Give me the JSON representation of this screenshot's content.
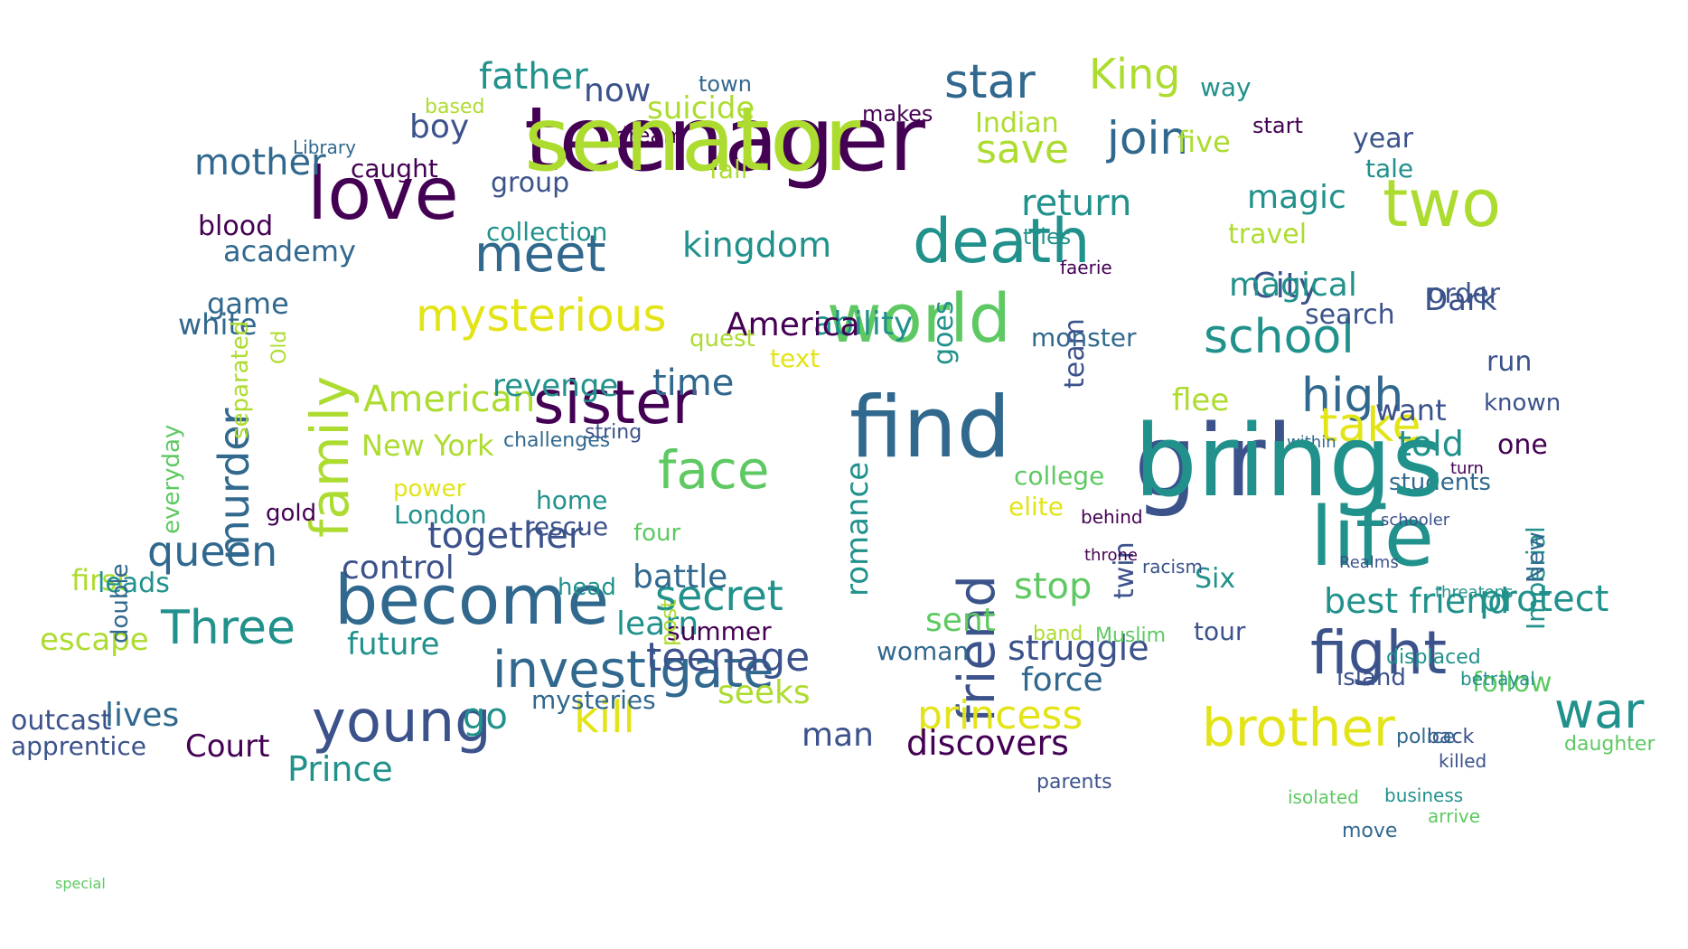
{
  "palette": {
    "dark_purple": "#440154",
    "indigo": "#3b528b",
    "blue": "#31688e",
    "teal": "#21918c",
    "sea": "#27ad81",
    "green": "#5ec962",
    "lime": "#addc30",
    "yellow": "#e3e418",
    "background": "#ffffff"
  },
  "words": [
    {
      "text": "teenager",
      "color": "dark_purple"
    },
    {
      "text": "girl",
      "color": "indigo"
    },
    {
      "text": "love",
      "color": "dark_purple"
    },
    {
      "text": "life",
      "color": "teal"
    },
    {
      "text": "become",
      "color": "blue"
    },
    {
      "text": "find",
      "color": "blue"
    },
    {
      "text": "two",
      "color": "lime"
    },
    {
      "text": "death",
      "color": "teal"
    },
    {
      "text": "world",
      "color": "green"
    },
    {
      "text": "sister",
      "color": "dark_purple"
    },
    {
      "text": "fight",
      "color": "indigo"
    },
    {
      "text": "young",
      "color": "indigo"
    },
    {
      "text": "friend",
      "color": "indigo"
    },
    {
      "text": "investigate",
      "color": "blue"
    },
    {
      "text": "brother",
      "color": "yellow"
    },
    {
      "text": "family",
      "color": "lime"
    },
    {
      "text": "mysterious",
      "color": "yellow"
    },
    {
      "text": "war",
      "color": "teal"
    },
    {
      "text": "face",
      "color": "green"
    },
    {
      "text": "meet",
      "color": "blue"
    },
    {
      "text": "star",
      "color": "blue"
    },
    {
      "text": "King",
      "color": "lime"
    },
    {
      "text": "kill",
      "color": "yellow"
    },
    {
      "text": "Three",
      "color": "teal"
    },
    {
      "text": "queen",
      "color": "blue"
    },
    {
      "text": "school",
      "color": "teal"
    },
    {
      "text": "high",
      "color": "blue"
    },
    {
      "text": "take",
      "color": "yellow"
    },
    {
      "text": "secret",
      "color": "teal"
    },
    {
      "text": "murder",
      "color": "blue"
    },
    {
      "text": "princess",
      "color": "yellow"
    },
    {
      "text": "teenage",
      "color": "indigo"
    },
    {
      "text": "join",
      "color": "blue"
    },
    {
      "text": "save",
      "color": "lime"
    },
    {
      "text": "American",
      "color": "lime"
    },
    {
      "text": "together",
      "color": "indigo"
    },
    {
      "text": "discovers",
      "color": "dark_purple"
    },
    {
      "text": "struggle",
      "color": "indigo"
    },
    {
      "text": "time",
      "color": "blue"
    },
    {
      "text": "return",
      "color": "teal"
    },
    {
      "text": "kingdom",
      "color": "teal"
    },
    {
      "text": "best friend",
      "color": "teal"
    },
    {
      "text": "father",
      "color": "teal"
    },
    {
      "text": "mother",
      "color": "blue"
    },
    {
      "text": "romance",
      "color": "teal"
    },
    {
      "text": "Court",
      "color": "dark_purple"
    },
    {
      "text": "lives",
      "color": "blue"
    },
    {
      "text": "Prince",
      "color": "teal"
    },
    {
      "text": "learn",
      "color": "teal"
    },
    {
      "text": "ability",
      "color": "teal"
    },
    {
      "text": "force",
      "color": "blue"
    },
    {
      "text": "protect",
      "color": "teal"
    },
    {
      "text": "stop",
      "color": "green"
    },
    {
      "text": "go",
      "color": "teal"
    },
    {
      "text": "man",
      "color": "indigo"
    },
    {
      "text": "control",
      "color": "indigo"
    },
    {
      "text": "battle",
      "color": "blue"
    },
    {
      "text": "America",
      "color": "dark_purple"
    },
    {
      "text": "City",
      "color": "indigo"
    },
    {
      "text": "magical",
      "color": "teal"
    },
    {
      "text": "magic",
      "color": "teal"
    },
    {
      "text": "New York",
      "color": "lime"
    },
    {
      "text": "revenge",
      "color": "teal"
    },
    {
      "text": "seeks",
      "color": "lime"
    },
    {
      "text": "sent",
      "color": "green"
    },
    {
      "text": "future",
      "color": "teal"
    },
    {
      "text": "escape",
      "color": "lime"
    },
    {
      "text": "outcast",
      "color": "indigo"
    },
    {
      "text": "apprentice",
      "color": "indigo"
    },
    {
      "text": "game",
      "color": "blue"
    },
    {
      "text": "academy",
      "color": "blue"
    },
    {
      "text": "white",
      "color": "blue"
    },
    {
      "text": "boy",
      "color": "indigo"
    },
    {
      "text": "blood",
      "color": "dark_purple"
    },
    {
      "text": "caught",
      "color": "dark_purple"
    },
    {
      "text": "group",
      "color": "indigo"
    },
    {
      "text": "now",
      "color": "indigo"
    },
    {
      "text": "suicide",
      "color": "lime"
    },
    {
      "text": "fall",
      "color": "lime"
    },
    {
      "text": "collection",
      "color": "teal"
    },
    {
      "text": "Indian",
      "color": "lime"
    },
    {
      "text": "five",
      "color": "lime"
    },
    {
      "text": "year",
      "color": "indigo"
    },
    {
      "text": "order",
      "color": "indigo"
    },
    {
      "text": "Dark",
      "color": "indigo"
    },
    {
      "text": "search",
      "color": "indigo"
    },
    {
      "text": "run",
      "color": "indigo"
    },
    {
      "text": "told",
      "color": "teal"
    },
    {
      "text": "want",
      "color": "indigo"
    },
    {
      "text": "one",
      "color": "dark_purple"
    },
    {
      "text": "known",
      "color": "indigo"
    },
    {
      "text": "flee",
      "color": "lime"
    },
    {
      "text": "team",
      "color": "indigo"
    },
    {
      "text": "twin",
      "color": "indigo"
    },
    {
      "text": "tour",
      "color": "indigo"
    },
    {
      "text": "Six",
      "color": "teal"
    },
    {
      "text": "college",
      "color": "green"
    },
    {
      "text": "elite",
      "color": "yellow"
    },
    {
      "text": "monster",
      "color": "blue"
    },
    {
      "text": "travel",
      "color": "lime"
    },
    {
      "text": "way",
      "color": "teal"
    },
    {
      "text": "tale",
      "color": "teal"
    },
    {
      "text": "start",
      "color": "dark_purple"
    },
    {
      "text": "students",
      "color": "blue"
    },
    {
      "text": "follow",
      "color": "green"
    },
    {
      "text": "Imperial",
      "color": "teal"
    },
    {
      "text": "New",
      "color": "blue"
    },
    {
      "text": "island",
      "color": "indigo"
    },
    {
      "text": "woman",
      "color": "blue"
    },
    {
      "text": "summer",
      "color": "dark_purple"
    },
    {
      "text": "first",
      "color": "lime"
    },
    {
      "text": "gold",
      "color": "dark_purple"
    },
    {
      "text": "power",
      "color": "yellow"
    },
    {
      "text": "London",
      "color": "teal"
    },
    {
      "text": "rescue",
      "color": "indigo"
    },
    {
      "text": "home",
      "color": "teal"
    },
    {
      "text": "four",
      "color": "green"
    },
    {
      "text": "head",
      "color": "teal"
    },
    {
      "text": "string",
      "color": "indigo"
    },
    {
      "text": "challenges",
      "color": "blue"
    },
    {
      "text": "leads",
      "color": "teal"
    },
    {
      "text": "Old",
      "color": "lime"
    },
    {
      "text": "separated",
      "color": "lime"
    },
    {
      "text": "everyday",
      "color": "green"
    },
    {
      "text": "double",
      "color": "blue"
    },
    {
      "text": "goes",
      "color": "teal"
    },
    {
      "text": "text",
      "color": "yellow"
    },
    {
      "text": "quest",
      "color": "lime"
    },
    {
      "text": "post",
      "color": "lime"
    },
    {
      "text": "mysteries",
      "color": "blue"
    },
    {
      "text": "dream",
      "color": "dark_purple"
    },
    {
      "text": "town",
      "color": "blue"
    },
    {
      "text": "makes",
      "color": "dark_purple"
    },
    {
      "text": "based",
      "color": "lime"
    },
    {
      "text": "Library",
      "color": "blue"
    },
    {
      "text": "tries",
      "color": "teal"
    },
    {
      "text": "faerie",
      "color": "dark_purple"
    },
    {
      "text": "Muslim",
      "color": "green"
    },
    {
      "text": "band",
      "color": "lime"
    },
    {
      "text": "parents",
      "color": "indigo"
    },
    {
      "text": "back",
      "color": "indigo"
    },
    {
      "text": "daughter",
      "color": "green"
    },
    {
      "text": "displaced",
      "color": "teal"
    },
    {
      "text": "police",
      "color": "blue"
    },
    {
      "text": "move",
      "color": "blue"
    },
    {
      "text": "isolated",
      "color": "green"
    },
    {
      "text": "business",
      "color": "teal"
    },
    {
      "text": "arrive",
      "color": "green"
    },
    {
      "text": "killed",
      "color": "indigo"
    },
    {
      "text": "betrayal",
      "color": "teal"
    },
    {
      "text": "threatens",
      "color": "teal"
    },
    {
      "text": "Realms",
      "color": "indigo"
    },
    {
      "text": "behind",
      "color": "dark_purple"
    },
    {
      "text": "racism",
      "color": "indigo"
    },
    {
      "text": "throne",
      "color": "dark_purple"
    },
    {
      "text": "turn",
      "color": "dark_purple"
    },
    {
      "text": "schooler",
      "color": "indigo"
    },
    {
      "text": "within",
      "color": "blue"
    },
    {
      "text": "special",
      "color": "green"
    },
    {
      "text": "senator",
      "color": "lime"
    },
    {
      "text": "brings",
      "color": "teal"
    }
  ]
}
